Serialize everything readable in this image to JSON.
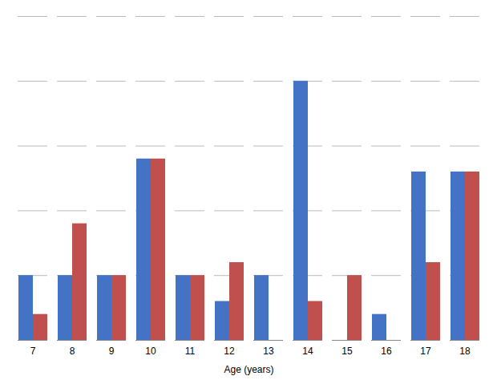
{
  "chart_data": {
    "type": "bar",
    "xlabel": "Age (years)",
    "categories": [
      "7",
      "8",
      "9",
      "10",
      "11",
      "12",
      "13",
      "14",
      "15",
      "16",
      "17",
      "18"
    ],
    "series": [
      {
        "color": "#4472C4",
        "values": [
          5,
          5,
          5,
          14,
          5,
          3,
          5,
          20,
          0,
          2,
          13,
          13
        ]
      },
      {
        "color": "#C0504D",
        "values": [
          2,
          9,
          5,
          14,
          5,
          6,
          0,
          3,
          5,
          0,
          6,
          13
        ]
      }
    ],
    "ylim": [
      0,
      25
    ],
    "yticks": [
      0,
      5,
      10,
      15,
      20,
      25
    ],
    "grid": true,
    "tick_labels": "x"
  }
}
